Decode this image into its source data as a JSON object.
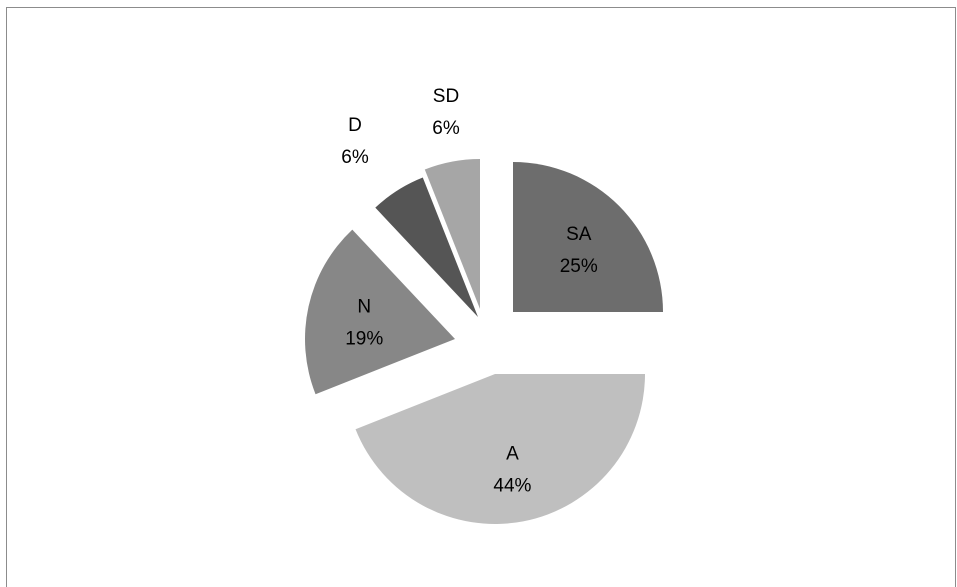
{
  "chart_data": {
    "type": "pie",
    "title": "",
    "exploded": true,
    "slices": [
      {
        "label": "SA",
        "value": 25,
        "percent_label": "25%",
        "color": "#6d6d6d"
      },
      {
        "label": "A",
        "value": 44,
        "percent_label": "44%",
        "color": "#bfbfbf"
      },
      {
        "label": "N",
        "value": 19,
        "percent_label": "19%",
        "color": "#878787"
      },
      {
        "label": "D",
        "value": 6,
        "percent_label": "6%",
        "color": "#555555"
      },
      {
        "label": "SD",
        "value": 6,
        "percent_label": "6%",
        "color": "#a6a6a6"
      }
    ]
  }
}
